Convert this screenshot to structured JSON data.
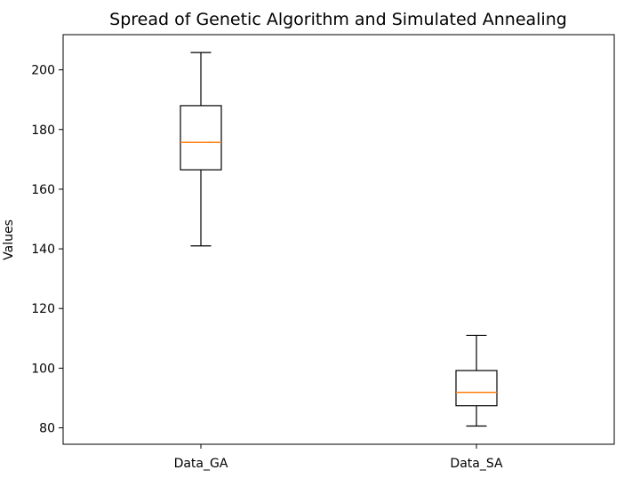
{
  "chart_data": {
    "type": "box",
    "title": "Spread of Genetic Algorithm and Simulated Annealing",
    "xlabel": "",
    "ylabel": "Values",
    "categories": [
      "Data_GA",
      "Data_SA"
    ],
    "series": [
      {
        "name": "Data_GA",
        "whisker_low": 141,
        "q1": 166.5,
        "median": 175.7,
        "q3": 188,
        "whisker_high": 205.8
      },
      {
        "name": "Data_SA",
        "whisker_low": 80.6,
        "q1": 87.4,
        "median": 91.9,
        "q3": 99.2,
        "whisker_high": 111
      }
    ],
    "ylim": [
      74.5,
      211.8
    ],
    "yticks": [
      80,
      100,
      120,
      140,
      160,
      180,
      200
    ],
    "grid": false,
    "legend": "none",
    "colors": {
      "box": "#000000",
      "median": "#ff7f0e",
      "axes": "#000000",
      "background": "#ffffff"
    }
  }
}
